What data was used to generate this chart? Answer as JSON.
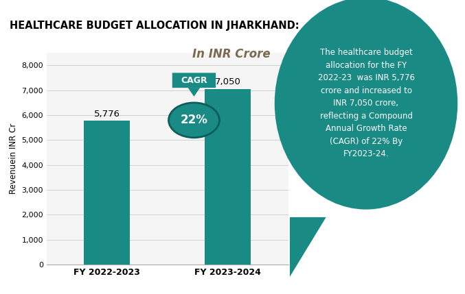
{
  "title": "HEALTHCARE BUDGET ALLOCATION IN JHARKHAND:",
  "subtitle": "In INR Crore",
  "categories": [
    "FY 2022-2023",
    "FY 2023-2024"
  ],
  "values": [
    5776,
    7050
  ],
  "bar_color": "#1a8a85",
  "ylabel": "Revenuein INR Cr",
  "ylim": [
    0,
    8500
  ],
  "yticks": [
    0,
    1000,
    2000,
    3000,
    4000,
    5000,
    6000,
    7000,
    8000
  ],
  "bar_labels": [
    "5,776",
    "7,050"
  ],
  "cagr_label": "CAGR",
  "cagr_value": "22%",
  "callout_text": "The healthcare budget\nallocation for the FY\n2022-23  was INR 5,776\ncrore and increased to\nINR 7,050 crore,\nreflecting a Compound\nAnnual Growth Rate\n(CAGR) of 22% By\nFY2023-24.",
  "callout_bg": "#1a8a85",
  "callout_text_color": "#ffffff",
  "background_color": "#ffffff",
  "title_fontsize": 10.5,
  "subtitle_fontsize": 12,
  "ylabel_fontsize": 8.5,
  "bar_label_fontsize": 9.5,
  "axis_bg": "#f5f5f5"
}
